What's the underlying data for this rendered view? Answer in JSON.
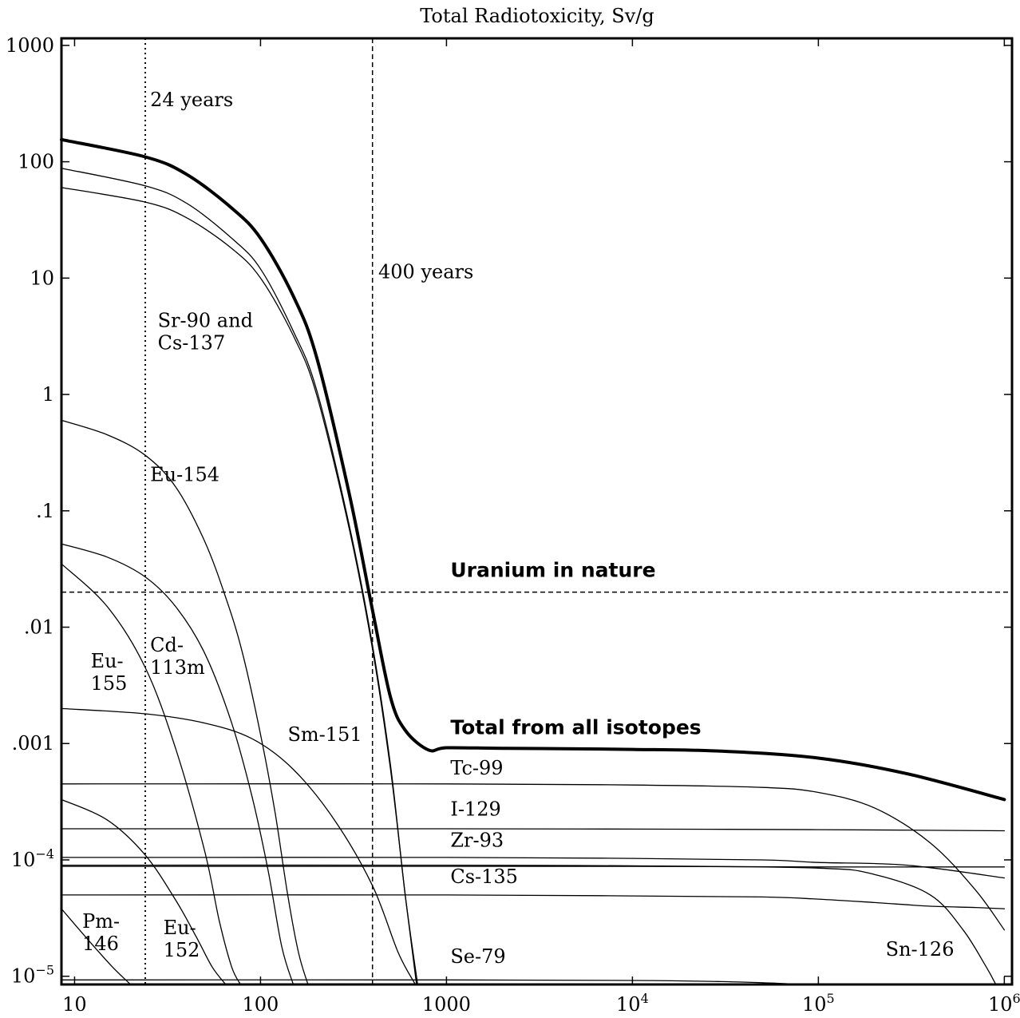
{
  "chart_data": {
    "type": "line",
    "title": "Total Radiotoxicity, Sv/g",
    "xlabel": "",
    "ylabel": "",
    "x_scale": "log",
    "y_scale": "log",
    "xlim": [
      8.5,
      1100000
    ],
    "ylim": [
      8.5e-06,
      1150
    ],
    "grid": false,
    "x_ticks": [
      {
        "value": 10,
        "label": "10"
      },
      {
        "value": 100,
        "label": "100"
      },
      {
        "value": 1000,
        "label": "1000"
      },
      {
        "value": 10000,
        "label": "10",
        "sup": "4"
      },
      {
        "value": 100000,
        "label": "10",
        "sup": "5"
      },
      {
        "value": 1000000,
        "label": "10",
        "sup": "6"
      }
    ],
    "y_ticks": [
      {
        "value": 1000,
        "label": "1000"
      },
      {
        "value": 100,
        "label": "100"
      },
      {
        "value": 10,
        "label": "10"
      },
      {
        "value": 1,
        "label": "1"
      },
      {
        "value": 0.1,
        "label": ".1"
      },
      {
        "value": 0.01,
        "label": ".01"
      },
      {
        "value": 0.001,
        "label": ".001"
      },
      {
        "value": 0.0001,
        "label": "10",
        "sup": "−4"
      },
      {
        "value": 1e-05,
        "label": "10",
        "sup": "−5"
      }
    ],
    "reference_lines": [
      {
        "orientation": "vertical",
        "x": 24,
        "style": "dotted",
        "label": "24 years",
        "label_x": 25.5,
        "label_y": 300
      },
      {
        "orientation": "vertical",
        "x": 400,
        "style": "dashed",
        "label": "400 years",
        "label_x": 430,
        "label_y": 10
      },
      {
        "orientation": "horizontal",
        "y": 0.02,
        "style": "dashed",
        "label": "Uranium in nature",
        "label_bold": true,
        "label_x": 1050,
        "label_y": 0.027
      }
    ],
    "series": [
      {
        "name": "Total from all isotopes",
        "bold": true,
        "x": [
          8.5,
          24,
          40,
          70,
          100,
          150,
          200,
          300,
          400,
          500,
          600,
          800,
          1000,
          2000,
          5000,
          10000,
          30000,
          100000,
          300000,
          1000000
        ],
        "y": [
          155,
          110,
          78,
          40,
          22,
          7,
          2.1,
          0.14,
          0.014,
          0.0025,
          0.0013,
          0.00088,
          0.00092,
          0.00091,
          0.0009,
          0.00089,
          0.00086,
          0.00075,
          0.00055,
          0.00033
        ]
      },
      {
        "name": "",
        "x": [
          8.5,
          24,
          40,
          70,
          100,
          150,
          200,
          300,
          400,
          500,
          600,
          700
        ],
        "y": [
          88,
          62,
          44,
          22,
          12,
          3.5,
          1.1,
          0.075,
          0.007,
          0.00065,
          5e-05,
          8.5e-06
        ]
      },
      {
        "name": "",
        "x": [
          8.5,
          24,
          40,
          70,
          100,
          150,
          200,
          300,
          400,
          500,
          600,
          690
        ],
        "y": [
          60,
          45,
          33,
          18,
          10,
          3.2,
          1.0,
          0.07,
          0.0065,
          0.0006,
          5e-05,
          8.5e-06
        ]
      },
      {
        "name": "",
        "x": [
          8.5,
          15,
          24,
          35,
          50,
          65,
          80,
          100,
          120,
          140,
          160,
          180
        ],
        "y": [
          0.6,
          0.45,
          0.3,
          0.16,
          0.055,
          0.018,
          0.006,
          0.0012,
          0.00025,
          5e-05,
          1.6e-05,
          8.5e-06
        ]
      },
      {
        "name": "",
        "x": [
          8.5,
          15,
          24,
          35,
          50,
          70,
          90,
          110,
          130,
          150
        ],
        "y": [
          0.052,
          0.04,
          0.027,
          0.015,
          0.006,
          0.0015,
          0.00035,
          8e-05,
          1.8e-05,
          8.5e-06
        ]
      },
      {
        "name": "",
        "x": [
          8.5,
          15,
          24,
          35,
          50,
          60,
          70,
          78
        ],
        "y": [
          0.035,
          0.015,
          0.0045,
          0.0009,
          0.00012,
          3e-05,
          1.2e-05,
          8.5e-06
        ]
      },
      {
        "name": "",
        "x": [
          8.5,
          24,
          50,
          90,
          150,
          250,
          400,
          550,
          680
        ],
        "y": [
          0.002,
          0.0018,
          0.0015,
          0.0011,
          0.0006,
          0.00022,
          6e-05,
          1.6e-05,
          8.5e-06
        ]
      },
      {
        "name": "",
        "x": [
          8.5,
          15,
          24,
          35,
          45,
          55,
          65
        ],
        "y": [
          0.00033,
          0.00022,
          0.00011,
          4.5e-05,
          2.2e-05,
          1.2e-05,
          8.5e-06
        ]
      },
      {
        "name": "",
        "x": [
          8.5,
          12,
          16,
          20
        ],
        "y": [
          3.8e-05,
          2e-05,
          1.2e-05,
          8.5e-06
        ]
      },
      {
        "name": "",
        "x": [
          8.5,
          1000,
          10000,
          50000,
          100000,
          200000,
          400000,
          700000,
          1000000
        ],
        "y": [
          0.00045,
          0.00045,
          0.00044,
          0.00042,
          0.00038,
          0.00028,
          0.00014,
          5.5e-05,
          2.5e-05
        ]
      },
      {
        "name": "",
        "x": [
          8.5,
          1000,
          10000,
          100000,
          1000000
        ],
        "y": [
          0.000185,
          0.000185,
          0.000184,
          0.000182,
          0.000178
        ]
      },
      {
        "name": "",
        "x": [
          8.5,
          1000,
          10000,
          50000,
          100000,
          300000,
          1000000
        ],
        "y": [
          0.000105,
          0.000105,
          0.000103,
          0.0001,
          9.5e-05,
          9e-05,
          7e-05
        ]
      },
      {
        "name": "",
        "x": [
          8.5,
          1000,
          10000,
          100000,
          1000000
        ],
        "y": [
          8.8e-05,
          8.8e-05,
          8.8e-05,
          8.7e-05,
          8.7e-05
        ]
      },
      {
        "name": "",
        "x": [
          8.5,
          1000,
          10000,
          50000,
          100000,
          200000,
          400000,
          700000,
          1000000
        ],
        "y": [
          5e-05,
          5e-05,
          4.9e-05,
          4.8e-05,
          4.6e-05,
          4.3e-05,
          4e-05,
          3.9e-05,
          3.8e-05
        ]
      },
      {
        "name": "",
        "x": [
          8.5,
          1000,
          10000,
          100000,
          200000,
          400000,
          600000,
          800000,
          900000
        ],
        "y": [
          9e-05,
          9e-05,
          8.9e-05,
          8.5e-05,
          7.5e-05,
          5e-05,
          2.5e-05,
          1.2e-05,
          8.5e-06
        ]
      },
      {
        "name": "",
        "x": [
          8.5,
          1000,
          10000,
          30000,
          60000,
          80000
        ],
        "y": [
          9.3e-06,
          9.3e-06,
          9.2e-06,
          9e-06,
          8.7e-06,
          8.5e-06
        ]
      }
    ],
    "annotations": [
      {
        "lines": [
          "Sr-90 and",
          "Cs-137"
        ],
        "x": 28,
        "y": 3.8
      },
      {
        "lines": [
          "Eu-154"
        ],
        "x": 25.5,
        "y": 0.18
      },
      {
        "lines": [
          "Cd-",
          "113m"
        ],
        "x": 25.5,
        "y": 0.0062
      },
      {
        "lines": [
          "Eu-",
          "155"
        ],
        "x": 12.2,
        "y": 0.0045
      },
      {
        "lines": [
          "Sm-151"
        ],
        "x": 140,
        "y": 0.00105
      },
      {
        "lines": [
          "Pm-",
          "146"
        ],
        "x": 11,
        "y": 2.6e-05
      },
      {
        "lines": [
          "Eu-",
          "152"
        ],
        "x": 30,
        "y": 2.3e-05
      },
      {
        "lines": [
          "Total from all isotopes"
        ],
        "x": 1050,
        "y": 0.0012,
        "bold": true
      },
      {
        "lines": [
          "Tc-99"
        ],
        "x": 1050,
        "y": 0.00054
      },
      {
        "lines": [
          "I-129"
        ],
        "x": 1050,
        "y": 0.00024
      },
      {
        "lines": [
          "Zr-93"
        ],
        "x": 1050,
        "y": 0.00013
      },
      {
        "lines": [
          "Cs-135"
        ],
        "x": 1050,
        "y": 6.3e-05
      },
      {
        "lines": [
          "Sn-126"
        ],
        "x": 230000,
        "y": 1.5e-05
      },
      {
        "lines": [
          "Se-79"
        ],
        "x": 1050,
        "y": 1.3e-05
      }
    ]
  }
}
